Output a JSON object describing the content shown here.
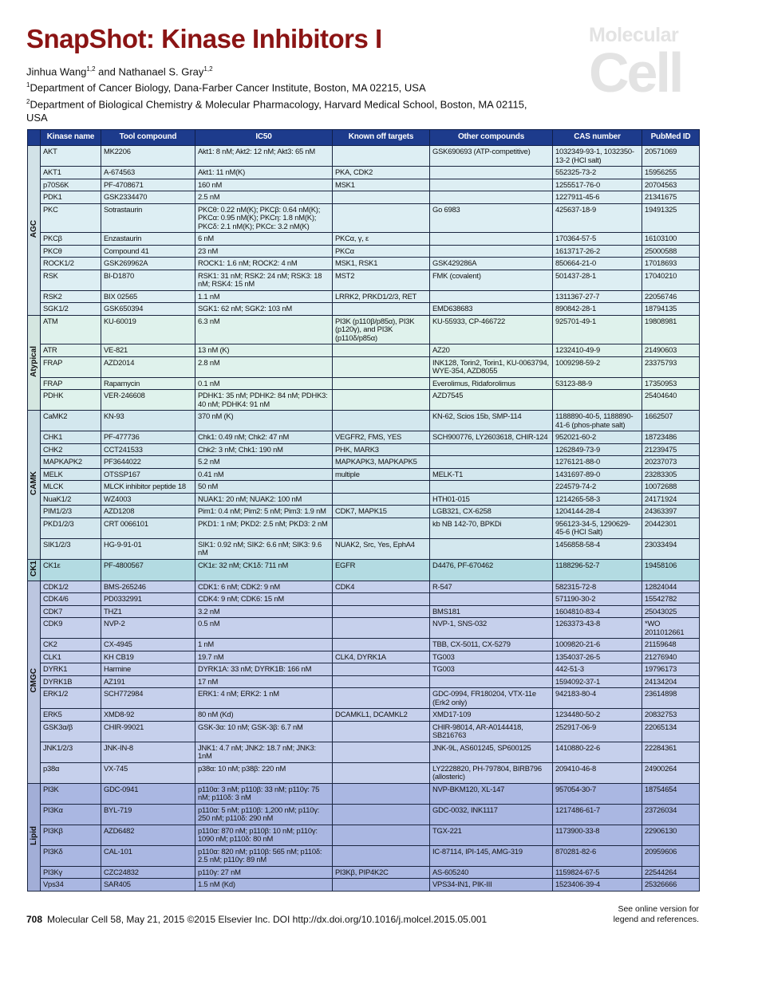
{
  "title": "SnapShot: Kinase Inhibitors I",
  "authors": {
    "a1": "Jinhua Wang",
    "a1_sup": "1,2",
    "and": " and Nathanael S. Gray",
    "a2_sup": "1,2"
  },
  "affiliations": [
    {
      "sup": "1",
      "text": "Department of Cancer Biology, Dana-Farber Cancer Institute, Boston, MA 02215, USA"
    },
    {
      "sup": "2",
      "text": "Department of Biological Chemistry & Molecular Pharmacology, Harvard Medical School, Boston, MA 02115, USA"
    }
  ],
  "logo": {
    "line1": "Molecular",
    "line2": "Cell"
  },
  "colors": {
    "header": "#1d3b8c",
    "title": "#8b1414",
    "AGC": "#ddeef3",
    "Atypical": "#dff2ec",
    "CAMK": "#d3e7ee",
    "CK1": "#b3dbe2",
    "CMGC": "#c6d0ec",
    "Lipid": "#aab7e2"
  },
  "columns": [
    "",
    "Kinase name",
    "Tool compound",
    "IC50",
    "Known off targets",
    "Other compounds",
    "CAS number",
    "PubMed ID"
  ],
  "groups": [
    {
      "name": "AGC",
      "rows": [
        [
          "AKT",
          "MK2206",
          "Akt1: 8 nM; Akt2: 12 nM; Akt3: 65 nM",
          "",
          "GSK690693 (ATP-competitive)",
          "1032349-93-1, 1032350-13-2 (HCl salt)",
          "20571069"
        ],
        [
          "AKT1",
          "A-674563",
          "Akt1: 11 nM(K)",
          "PKA, CDK2",
          "",
          "552325-73-2",
          "15956255"
        ],
        [
          "p70S6K",
          "PF-4708671",
          "160 nM",
          "MSK1",
          "",
          "1255517-76-0",
          "20704563"
        ],
        [
          "PDK1",
          "GSK2334470",
          "2.5 nM",
          "",
          "",
          "1227911-45-6",
          "21341675"
        ],
        [
          "PKC",
          "Sotrastaurin",
          "PKCθ: 0.22 nM(K); PKCβ: 0.64 nM(K); PKCα: 0.95 nM(K); PKCη: 1.8 nM(K); PKCδ: 2.1 nM(K); PKCε: 3.2 nM(K)",
          "",
          "Go 6983",
          "425637-18-9",
          "19491325"
        ],
        [
          "PKCβ",
          "Enzastaurin",
          "6 nM",
          "PKCα, γ, ε",
          "",
          "170364-57-5",
          "16103100"
        ],
        [
          "PKCθ",
          "Compound 41",
          "23 nM",
          "PKCα",
          "",
          "1613717-26-2",
          "25000588"
        ],
        [
          "ROCK1/2",
          "GSK269962A",
          "ROCK1: 1.6 nM; ROCK2: 4 nM",
          "MSK1, RSK1",
          "GSK429286A",
          "850664-21-0",
          "17018693"
        ],
        [
          "RSK",
          "BI-D1870",
          "RSK1: 31 nM; RSK2: 24 nM; RSK3: 18 nM; RSK4: 15 nM",
          "MST2",
          "FMK (covalent)",
          "501437-28-1",
          "17040210"
        ],
        [
          "RSK2",
          "BIX 02565",
          "1.1 nM",
          "LRRK2, PRKD1/2/3, RET",
          "",
          "1311367-27-7",
          "22056746"
        ],
        [
          "SGK1/2",
          "GSK650394",
          "SGK1: 62 nM; SGK2: 103 nM",
          "",
          "EMD638683",
          "890842-28-1",
          "18794135"
        ]
      ]
    },
    {
      "name": "Atypical",
      "rows": [
        [
          "ATM",
          "KU-60019",
          "6.3 nM",
          "PI3K (p110β/p85α), PI3K (p120γ), and PI3K (p110δ/p85α)",
          "KU-55933, CP-466722",
          "925701-49-1",
          "19808981"
        ],
        [
          "ATR",
          "VE-821",
          "13 nM (K)",
          "",
          "AZ20",
          "1232410-49-9",
          "21490603"
        ],
        [
          "FRAP",
          "AZD2014",
          "2.8 nM",
          "",
          "INK128, Torin2, Torin1, KU-0063794, WYE-354, AZD8055",
          "1009298-59-2",
          "23375793"
        ],
        [
          "FRAP",
          "Rapamycin",
          "0.1 nM",
          "",
          "Everolimus, Ridaforolimus",
          "53123-88-9",
          "17350953"
        ],
        [
          "PDHK",
          "VER-246608",
          "PDHK1: 35 nM; PDHK2: 84 nM; PDHK3: 40 nM; PDHK4: 91 nM",
          "",
          "AZD7545",
          "",
          "25404640"
        ]
      ]
    },
    {
      "name": "CAMK",
      "rows": [
        [
          "CaMK2",
          "KN-93",
          "370 nM (K)",
          "",
          "KN-62, Scios 15b, SMP-114",
          "1188890-40-5, 1188890-41-6 (phos-phate salt)",
          "1662507"
        ],
        [
          "CHK1",
          "PF-477736",
          "Chk1: 0.49 nM; Chk2: 47 nM",
          "VEGFR2, FMS, YES",
          "SCH900776, LY2603618, CHIR-124",
          "952021-60-2",
          "18723486"
        ],
        [
          "CHK2",
          "CCT241533",
          "Chk2: 3 nM; Chk1: 190 nM",
          "PHK, MARK3",
          "",
          "1262849-73-9",
          "21239475"
        ],
        [
          "MAPKAPK2",
          "PF3644022",
          "5.2 nM",
          "MAPKAPK3, MAPKAPK5",
          "",
          "1276121-88-0",
          "20237073"
        ],
        [
          "MELK",
          "OTSSP167",
          "0.41 nM",
          "multiple",
          "MELK-T1",
          "1431697-89-0",
          "23283305"
        ],
        [
          "MLCK",
          "MLCK inhibitor peptide 18",
          "50 nM",
          "",
          "",
          "224579-74-2",
          "10072688"
        ],
        [
          "NuaK1/2",
          "WZ4003",
          "NUAK1: 20 nM; NUAK2: 100 nM",
          "",
          "HTH01-015",
          "1214265-58-3",
          "24171924"
        ],
        [
          "PIM1/2/3",
          "AZD1208",
          "Pim1: 0.4 nM; Pim2: 5 nM; Pim3: 1.9 nM",
          "CDK7, MAPK15",
          "LGB321, CX-6258",
          "1204144-28-4",
          "24363397"
        ],
        [
          "PKD1/2/3",
          "CRT 0066101",
          "PKD1: 1 nM; PKD2: 2.5 nM; PKD3: 2 nM",
          "",
          "kb NB 142-70, BPKDi",
          "956123-34-5, 1290629-45-6 (HCl Salt)",
          "20442301"
        ],
        [
          "SIK1/2/3",
          "HG-9-91-01",
          "SIK1: 0.92 nM; SIK2: 6.6 nM; SIK3: 9.6 nM",
          "NUAK2, Src, Yes, EphA4",
          "",
          "1456858-58-4",
          "23033494"
        ]
      ]
    },
    {
      "name": "CK1",
      "rows": [
        [
          "CK1ε",
          "PF-4800567",
          "CK1ε: 32 nM; CK1δ: 711 nM",
          "EGFR",
          "D4476, PF-670462",
          "1188296-52-7",
          "19458106"
        ]
      ]
    },
    {
      "name": "CMGC",
      "rows": [
        [
          "CDK1/2",
          "BMS-265246",
          "CDK1: 6 nM; CDK2: 9 nM",
          "CDK4",
          "R-547",
          "582315-72-8",
          "12824044"
        ],
        [
          "CDK4/6",
          "PD0332991",
          "CDK4: 9 nM; CDK6: 15 nM",
          "",
          "",
          "571190-30-2",
          "15542782"
        ],
        [
          "CDK7",
          "THZ1",
          "3.2 nM",
          "",
          "BMS181",
          "1604810-83-4",
          "25043025"
        ],
        [
          "CDK9",
          "NVP-2",
          "0.5 nM",
          "",
          "NVP-1, SNS-032",
          "1263373-43-8",
          "*WO 2011012661"
        ],
        [
          "CK2",
          "CX-4945",
          "1 nM",
          "",
          "TBB, CX-5011, CX-5279",
          "1009820-21-6",
          "21159648"
        ],
        [
          "CLK1",
          "KH CB19",
          "19.7 nM",
          "CLK4, DYRK1A",
          "TG003",
          "1354037-26-5",
          "21276940"
        ],
        [
          "DYRK1",
          "Harmine",
          "DYRK1A: 33 nM; DYRK1B: 166 nM",
          "",
          "TG003",
          "442-51-3",
          "19796173"
        ],
        [
          "DYRK1B",
          "AZ191",
          "17 nM",
          "",
          "",
          "1594092-37-1",
          "24134204"
        ],
        [
          "ERK1/2",
          "SCH772984",
          "ERK1: 4 nM; ERK2: 1 nM",
          "",
          "GDC-0994, FR180204, VTX-11e (Erk2 only)",
          "942183-80-4",
          "23614898"
        ],
        [
          "ERK5",
          "XMD8-92",
          "80 nM (Kd)",
          "DCAMKL1, DCAMKL2",
          "XMD17-109",
          "1234480-50-2",
          "20832753"
        ],
        [
          "GSK3α/β",
          "CHIR-99021",
          "GSK-3α: 10 nM; GSK-3β: 6.7 nM",
          "",
          "CHIR-98014, AR-A0144418, SB216763",
          "252917-06-9",
          "22065134"
        ],
        [
          "JNK1/2/3",
          "JNK-IN-8",
          "JNK1: 4.7 nM; JNK2: 18.7 nM; JNK3: 1nM",
          "",
          "JNK-9L, AS601245, SP600125",
          "1410880-22-6",
          "22284361"
        ],
        [
          "p38α",
          "VX-745",
          "p38α: 10 nM; p38β: 220 nM",
          "",
          "LY2228820, PH-797804, BIRB796 (allosteric)",
          "209410-46-8",
          "24900264"
        ]
      ]
    },
    {
      "name": "Lipid",
      "rows": [
        [
          "PI3K",
          "GDC-0941",
          "p110α: 3 nM; p110β: 33 nM; p110γ: 75 nM; p110δ: 3 nM",
          "",
          "NVP-BKM120, XL-147",
          "957054-30-7",
          "18754654"
        ],
        [
          "PI3Kα",
          "BYL-719",
          "p110α: 5 nM; p110β: 1,200 nM; p110γ: 250 nM; p110δ: 290 nM",
          "",
          "GDC-0032, INK1117",
          "1217486-61-7",
          "23726034"
        ],
        [
          "PI3Kβ",
          "AZD6482",
          "p110α: 870 nM; p110β: 10 nM; p110γ: 1090 nM; p110δ: 80 nM",
          "",
          "TGX-221",
          "1173900-33-8",
          "22906130"
        ],
        [
          "PI3Kδ",
          "CAL-101",
          "p110α: 820 nM; p110β: 565 nM; p110δ: 2.5 nM; p110γ: 89 nM",
          "",
          "IC-87114, IPI-145, AMG-319",
          "870281-82-6",
          "20959606"
        ],
        [
          "PI3Kγ",
          "CZC24832",
          "p110γ: 27 nM",
          "PI3Kβ, PIP4K2C",
          "AS-605240",
          "1159824-67-5",
          "22544264"
        ],
        [
          "Vps34",
          "SAR405",
          "1.5 nM (Kd)",
          "",
          "VPS34-IN1, PIK-III",
          "1523406-39-4",
          "25326666"
        ]
      ]
    }
  ],
  "footer": {
    "page": "708",
    "citation": "Molecular Cell 58, May 21, 2015 ©2015 Elsevier Inc.   DOI http://dx.doi.org/10.1016/j.molcel.2015.05.001",
    "note": "See online version for legend and references."
  }
}
